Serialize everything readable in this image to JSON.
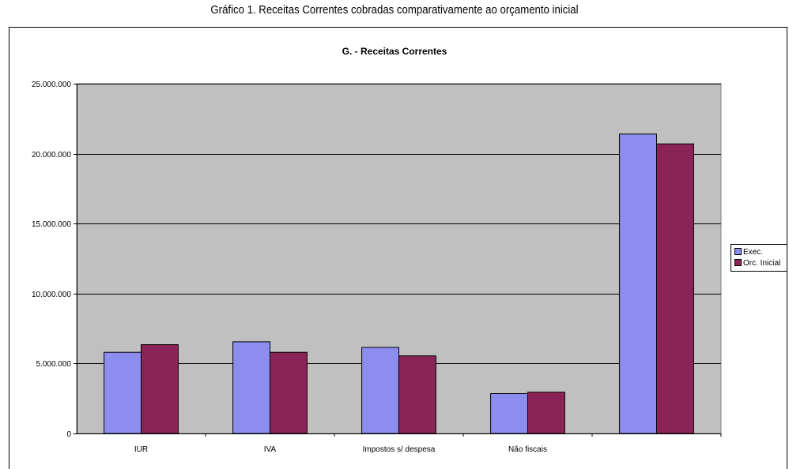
{
  "caption": "Gráfico 1. Receitas Correntes cobradas comparativamente ao orçamento inicial",
  "chart_data": {
    "type": "bar",
    "title": "G. - Receitas Correntes",
    "categories": [
      "IUR",
      "IVA",
      "Impostos s/ despesa",
      "Não fiscais",
      ""
    ],
    "series": [
      {
        "name": "Exec.",
        "color": "#8d8def",
        "values": [
          5800000,
          6550000,
          6150000,
          2850000,
          21400000
        ]
      },
      {
        "name": "Orc. Inicial",
        "color": "#8b2456",
        "values": [
          6350000,
          5800000,
          5550000,
          2950000,
          20700000
        ]
      }
    ],
    "y_ticks": [
      "0",
      "5.000.000",
      "10.000.000",
      "15.000.000",
      "20.000.000",
      "25.000.000"
    ],
    "y_tick_values": [
      0,
      5000000,
      10000000,
      15000000,
      20000000,
      25000000
    ],
    "ylim": [
      0,
      25000000
    ],
    "xlabel": "",
    "ylabel": "",
    "grid": true,
    "plot_background": "#c0c0c0",
    "legend_position": "right"
  }
}
